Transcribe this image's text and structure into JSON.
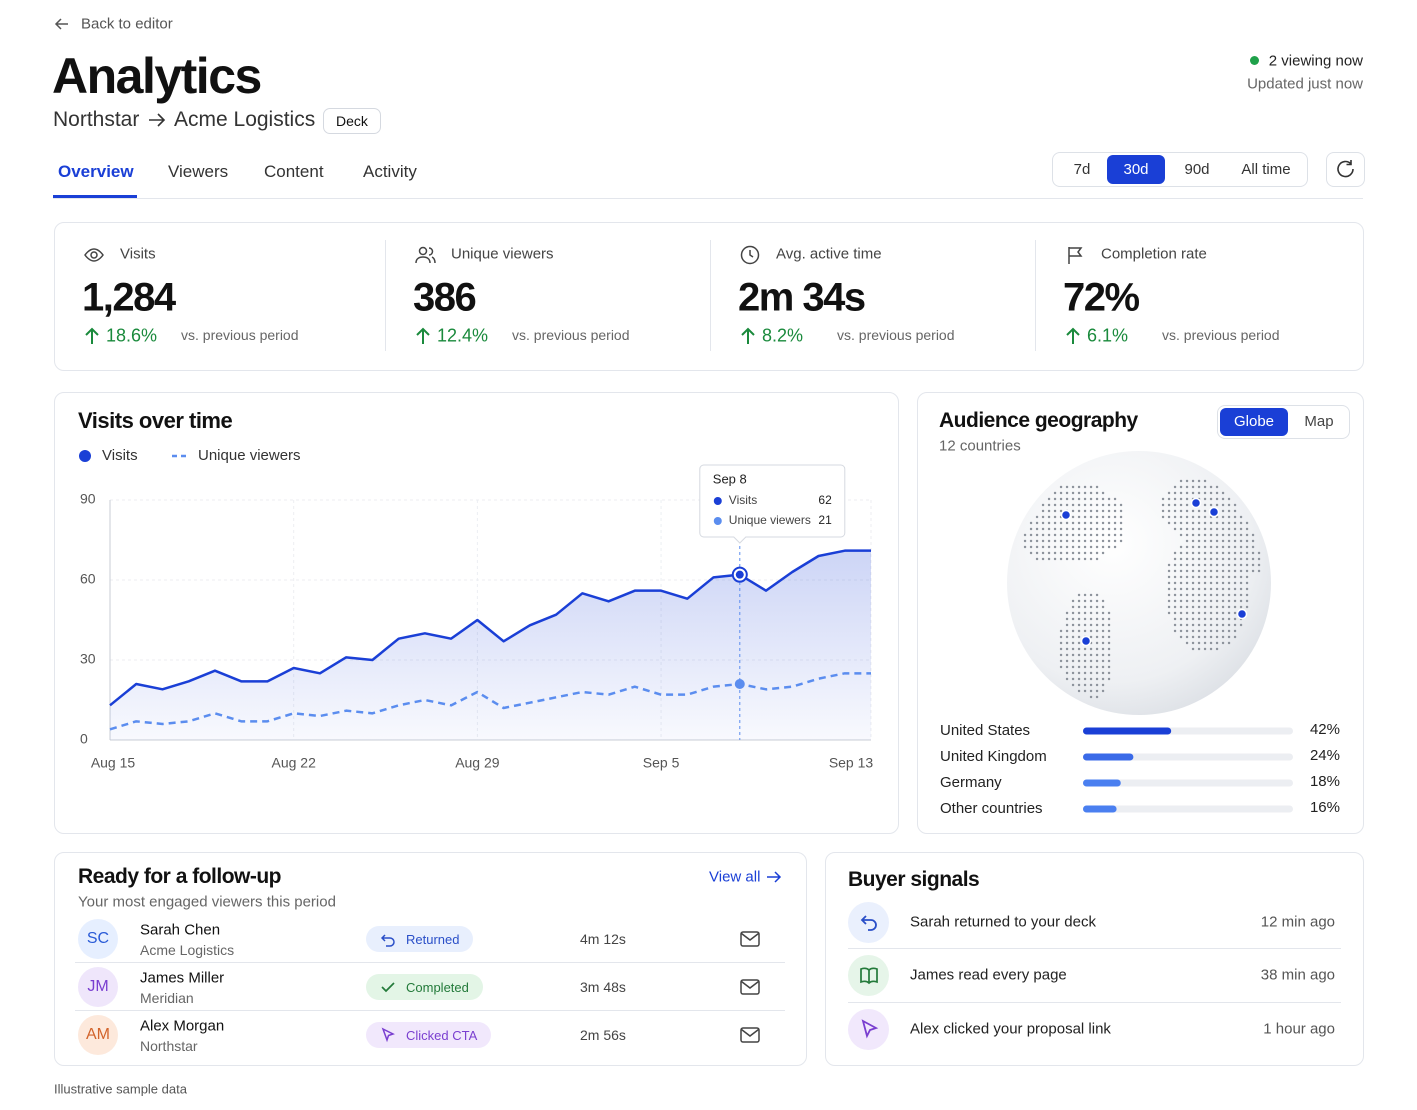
{
  "nav": {
    "back": "Back to editor"
  },
  "header": {
    "title": "Analytics",
    "breadcrumb": [
      "Northstar",
      "Acme Logistics"
    ],
    "badge": "Deck",
    "status": "2 viewing now",
    "updated": "Updated just now"
  },
  "tabs": [
    "Overview",
    "Viewers",
    "Content",
    "Activity"
  ],
  "ranges": [
    "7d",
    "30d",
    "90d",
    "All time"
  ],
  "kpis": [
    {
      "label": "Visits",
      "value": "1,284",
      "change": "18.6%",
      "note": "vs. previous period"
    },
    {
      "label": "Unique viewers",
      "value": "386",
      "change": "12.4%",
      "note": "vs. previous period"
    },
    {
      "label": "Avg. active time",
      "value": "2m 34s",
      "change": "8.2%",
      "note": "vs. previous period"
    },
    {
      "label": "Completion rate",
      "value": "72%",
      "change": "6.1%",
      "note": "vs. previous period"
    }
  ],
  "chart_data": [
    {
      "type": "line",
      "title": "Visits over time",
      "categories": [
        "Aug 15",
        null,
        null,
        null,
        null,
        null,
        null,
        "Aug 22",
        null,
        null,
        null,
        null,
        null,
        null,
        "Aug 29",
        null,
        null,
        null,
        null,
        null,
        null,
        "Sep 5",
        null,
        null,
        null,
        null,
        null,
        null,
        null,
        "Sep 13"
      ],
      "series": [
        {
          "name": "Visits",
          "color": "#1a3fd6",
          "values": [
            13,
            21,
            19,
            22,
            26,
            22,
            22,
            27,
            25,
            31,
            30,
            38,
            40,
            38,
            45,
            37,
            43,
            47,
            55,
            52,
            56,
            56,
            53,
            61,
            62,
            56,
            63,
            69,
            71,
            71
          ]
        },
        {
          "name": "Unique viewers",
          "color": "#5b8def",
          "dashed": true,
          "values": [
            4,
            7,
            6,
            7,
            10,
            7,
            7,
            10,
            9,
            11,
            10,
            13,
            15,
            13,
            18,
            12,
            14,
            16,
            18,
            17,
            20,
            17,
            17,
            20,
            21,
            19,
            20,
            23,
            25,
            25
          ]
        }
      ],
      "ylim": [
        0,
        90
      ],
      "yticks": [
        0,
        30,
        60,
        90
      ],
      "grid": true,
      "tooltip": {
        "title": "Sep 8"
      }
    },
    {
      "type": "bar",
      "title": "Audience geography",
      "subtitle": "12 countries",
      "categories": [
        "United States",
        "United Kingdom",
        "Germany",
        "Other countries"
      ],
      "values": [
        42,
        24,
        18,
        16
      ],
      "value_labels": [
        "42%",
        "24%",
        "18%",
        "16%"
      ],
      "colors": [
        "#1a3fd6",
        "#3a6ae8",
        "#4a7ff0",
        "#4a7ff0"
      ],
      "xlim": [
        0,
        100
      ]
    }
  ],
  "geo_toggle": [
    "Globe",
    "Map"
  ],
  "followup": {
    "title": "Ready for a follow-up",
    "subtitle": "Your most engaged viewers this period",
    "view_all": "View all",
    "rows": [
      {
        "initials": "SC",
        "name": "Sarah Chen",
        "company": "Acme Logistics",
        "status": "Returned",
        "time": "4m 12s"
      },
      {
        "initials": "JM",
        "name": "James Miller",
        "company": "Meridian",
        "status": "Completed",
        "time": "3m 48s"
      },
      {
        "initials": "AM",
        "name": "Alex Morgan",
        "company": "Northstar",
        "status": "Clicked CTA",
        "time": "2m 56s"
      }
    ]
  },
  "signals": {
    "title": "Buyer signals",
    "rows": [
      {
        "text": "Sarah returned to your deck",
        "time": "12 min ago"
      },
      {
        "text": "James read every page",
        "time": "38 min ago"
      },
      {
        "text": "Alex clicked your proposal link",
        "time": "1 hour ago"
      }
    ]
  },
  "footer": "Illustrative sample data"
}
